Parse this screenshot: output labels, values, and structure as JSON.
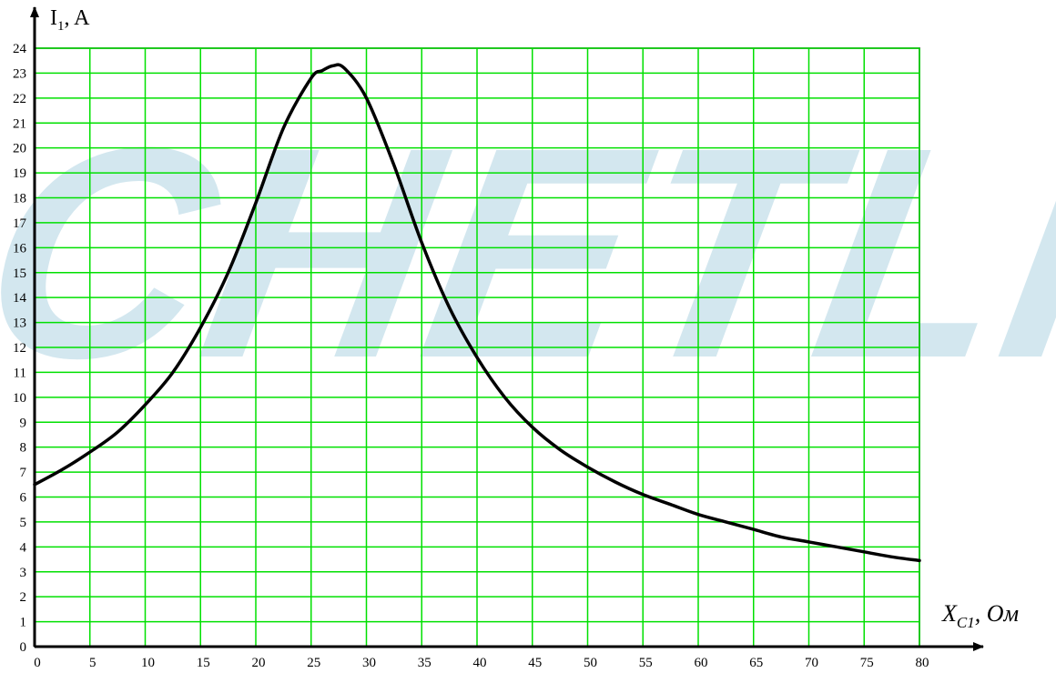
{
  "watermark": {
    "text": "CHETLRU",
    "color": "#d3e7ef"
  },
  "chart_data": {
    "type": "line",
    "title": "",
    "ylabel": {
      "main": "I",
      "sub": "1",
      "unit": ", A"
    },
    "xlabel": {
      "main": "X",
      "sub": "C1",
      "unit": ", Ом"
    },
    "xlim": [
      0,
      80
    ],
    "ylim": [
      0,
      24
    ],
    "x_ticks": [
      0,
      5,
      10,
      15,
      20,
      25,
      30,
      35,
      40,
      45,
      50,
      55,
      60,
      65,
      70,
      75,
      80
    ],
    "y_ticks": [
      0,
      1,
      2,
      3,
      4,
      5,
      6,
      7,
      8,
      9,
      10,
      11,
      12,
      13,
      14,
      15,
      16,
      17,
      18,
      19,
      20,
      21,
      22,
      23,
      24
    ],
    "grid": true,
    "grid_color": "#00e000",
    "line_color": "#000000",
    "series": [
      {
        "x": [
          0,
          2.5,
          5,
          7.5,
          10,
          12.5,
          15,
          17.5,
          20,
          22.5,
          25,
          26,
          27,
          28,
          30,
          32.5,
          35,
          37.5,
          40,
          42.5,
          45,
          47.5,
          50,
          52.5,
          55,
          57.5,
          60,
          62.5,
          65,
          67.5,
          70,
          72.5,
          75,
          77.5,
          80
        ],
        "y": [
          6.5,
          7.1,
          7.8,
          8.6,
          9.7,
          11.0,
          12.8,
          15.0,
          17.8,
          20.8,
          22.8,
          23.1,
          23.3,
          23.2,
          22.0,
          19.3,
          16.2,
          13.6,
          11.6,
          10.0,
          8.8,
          7.9,
          7.2,
          6.6,
          6.1,
          5.7,
          5.3,
          5.0,
          4.7,
          4.4,
          4.2,
          4.0,
          3.8,
          3.6,
          3.45
        ]
      }
    ]
  }
}
